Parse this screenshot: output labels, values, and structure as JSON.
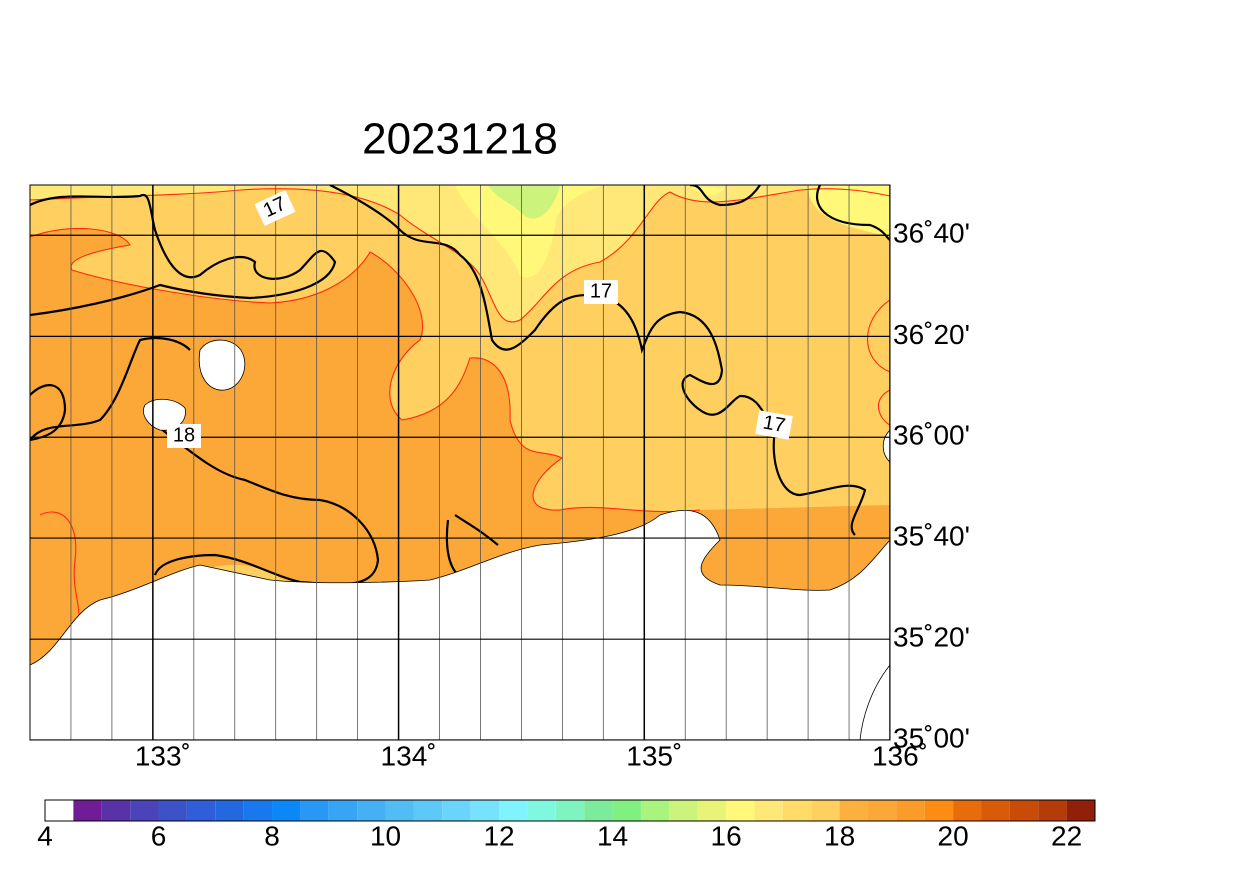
{
  "title": "20231218",
  "map": {
    "lon_range": [
      132.5,
      136
    ],
    "lat_range": [
      35,
      36.833
    ],
    "lon_ticks": [
      {
        "value": 133,
        "label": "133˚"
      },
      {
        "value": 134,
        "label": "134˚"
      },
      {
        "value": 135,
        "label": "135˚"
      },
      {
        "value": 136,
        "label": "136˚"
      }
    ],
    "lat_ticks": [
      {
        "value": 35,
        "label": "35˚00'"
      },
      {
        "value": 35.333,
        "label": "35˚20'"
      },
      {
        "value": 35.667,
        "label": "35˚40'"
      },
      {
        "value": 36,
        "label": "36˚00'"
      },
      {
        "value": 36.333,
        "label": "36˚20'"
      },
      {
        "value": 36.667,
        "label": "36˚40'"
      }
    ],
    "contour_labels": [
      "17",
      "17",
      "17",
      "18"
    ]
  },
  "colorbar": {
    "range": [
      4,
      22.5
    ],
    "ticks": [
      4,
      6,
      8,
      10,
      12,
      14,
      16,
      18,
      20,
      22
    ],
    "colors": [
      "#ffffff",
      "#701c96",
      "#5a32a8",
      "#4a44b8",
      "#3c52c8",
      "#2e5ed8",
      "#2468e0",
      "#1a78ee",
      "#0a88f8",
      "#2898f4",
      "#38a4f4",
      "#46b0f4",
      "#52bcf4",
      "#5ec8f8",
      "#6ad4fa",
      "#76e2fc",
      "#80f4fc",
      "#80f8e0",
      "#80f4c0",
      "#7cec9c",
      "#80f080",
      "#a8f47c",
      "#ccf47c",
      "#e8f478",
      "#fff878",
      "#ffe878",
      "#ffdc68",
      "#ffd060",
      "#fdb040",
      "#fca838",
      "#fc9c28",
      "#fc8c14",
      "#e86c0c",
      "#d85c08",
      "#c84c08",
      "#b43c08",
      "#902008"
    ]
  }
}
